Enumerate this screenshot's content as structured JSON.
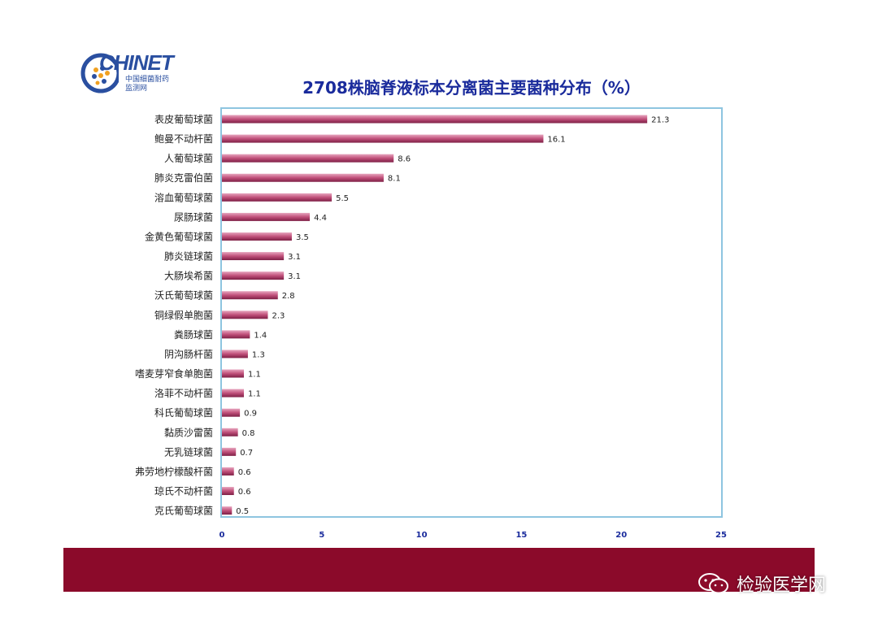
{
  "logo": {
    "text": "CHINET",
    "sub1": "中国细菌耐药",
    "sub2": "监测网"
  },
  "watermark": {
    "text": "检验医学网",
    "icon": "wechat-icon"
  },
  "colors": {
    "bar": "#c0507a",
    "title": "#1a2b9c",
    "frame": "#8ec5e0",
    "band": "#8b0a2a"
  },
  "chart_data": {
    "type": "bar",
    "orientation": "horizontal",
    "title": "2708株脑脊液标本分离菌主要菌种分布（%）",
    "categories": [
      "表皮葡萄球菌",
      "鲍曼不动杆菌",
      "人葡萄球菌",
      "肺炎克雷伯菌",
      "溶血葡萄球菌",
      "尿肠球菌",
      "金黄色葡萄球菌",
      "肺炎链球菌",
      "大肠埃希菌",
      "沃氏葡萄球菌",
      "铜绿假单胞菌",
      "粪肠球菌",
      "阴沟肠杆菌",
      "嗜麦芽窄食单胞菌",
      "洛菲不动杆菌",
      "科氏葡萄球菌",
      "黏质沙雷菌",
      "无乳链球菌",
      "弗劳地柠檬酸杆菌",
      "琼氏不动杆菌",
      "克氏葡萄球菌"
    ],
    "values": [
      21.3,
      16.1,
      8.6,
      8.1,
      5.5,
      4.4,
      3.5,
      3.1,
      3.1,
      2.8,
      2.3,
      1.4,
      1.3,
      1.1,
      1.1,
      0.9,
      0.8,
      0.7,
      0.6,
      0.6,
      0.5
    ],
    "value_labels": [
      "21.3",
      "16.1",
      "8.6",
      "8.1",
      "5.5",
      "4.4",
      "3.5",
      "3.1",
      "3.1",
      "2.8",
      "2.3",
      "1.4",
      "1.3",
      "1.1",
      "1.1",
      "0.9",
      "0.8",
      "0.7",
      "0.6",
      "0.6",
      "0.5"
    ],
    "xticks": [
      "0",
      "5",
      "10",
      "15",
      "20",
      "25"
    ],
    "xlim": [
      0,
      25
    ],
    "grid": false
  }
}
